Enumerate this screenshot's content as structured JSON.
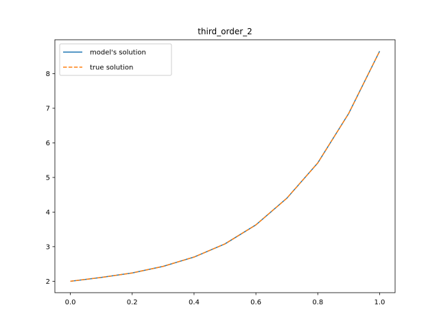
{
  "chart_data": {
    "type": "line",
    "title": "third_order_2",
    "xlabel": "",
    "ylabel": "",
    "xlim": [
      -0.05,
      1.05
    ],
    "ylim": [
      1.67,
      8.98
    ],
    "xticks": [
      0.0,
      0.2,
      0.4,
      0.6,
      0.8,
      1.0
    ],
    "xtick_labels": [
      "0.0",
      "0.2",
      "0.4",
      "0.6",
      "0.8",
      "1.0"
    ],
    "yticks": [
      2,
      3,
      4,
      5,
      6,
      7,
      8
    ],
    "ytick_labels": [
      "2",
      "3",
      "4",
      "5",
      "6",
      "7",
      "8"
    ],
    "grid": false,
    "legend_position": "top-left",
    "x": [
      0.0,
      0.1,
      0.2,
      0.3,
      0.4,
      0.5,
      0.6,
      0.7,
      0.8,
      0.9,
      1.0
    ],
    "series": [
      {
        "name": "model's solution",
        "color": "#1f77b4",
        "style": "solid",
        "values": [
          2.0,
          2.11,
          2.24,
          2.43,
          2.7,
          3.08,
          3.63,
          4.4,
          5.42,
          6.85,
          8.65
        ]
      },
      {
        "name": "true solution",
        "color": "#ff7f0e",
        "style": "dashed",
        "values": [
          2.0,
          2.11,
          2.24,
          2.43,
          2.7,
          3.08,
          3.63,
          4.4,
          5.42,
          6.85,
          8.65
        ]
      }
    ]
  }
}
